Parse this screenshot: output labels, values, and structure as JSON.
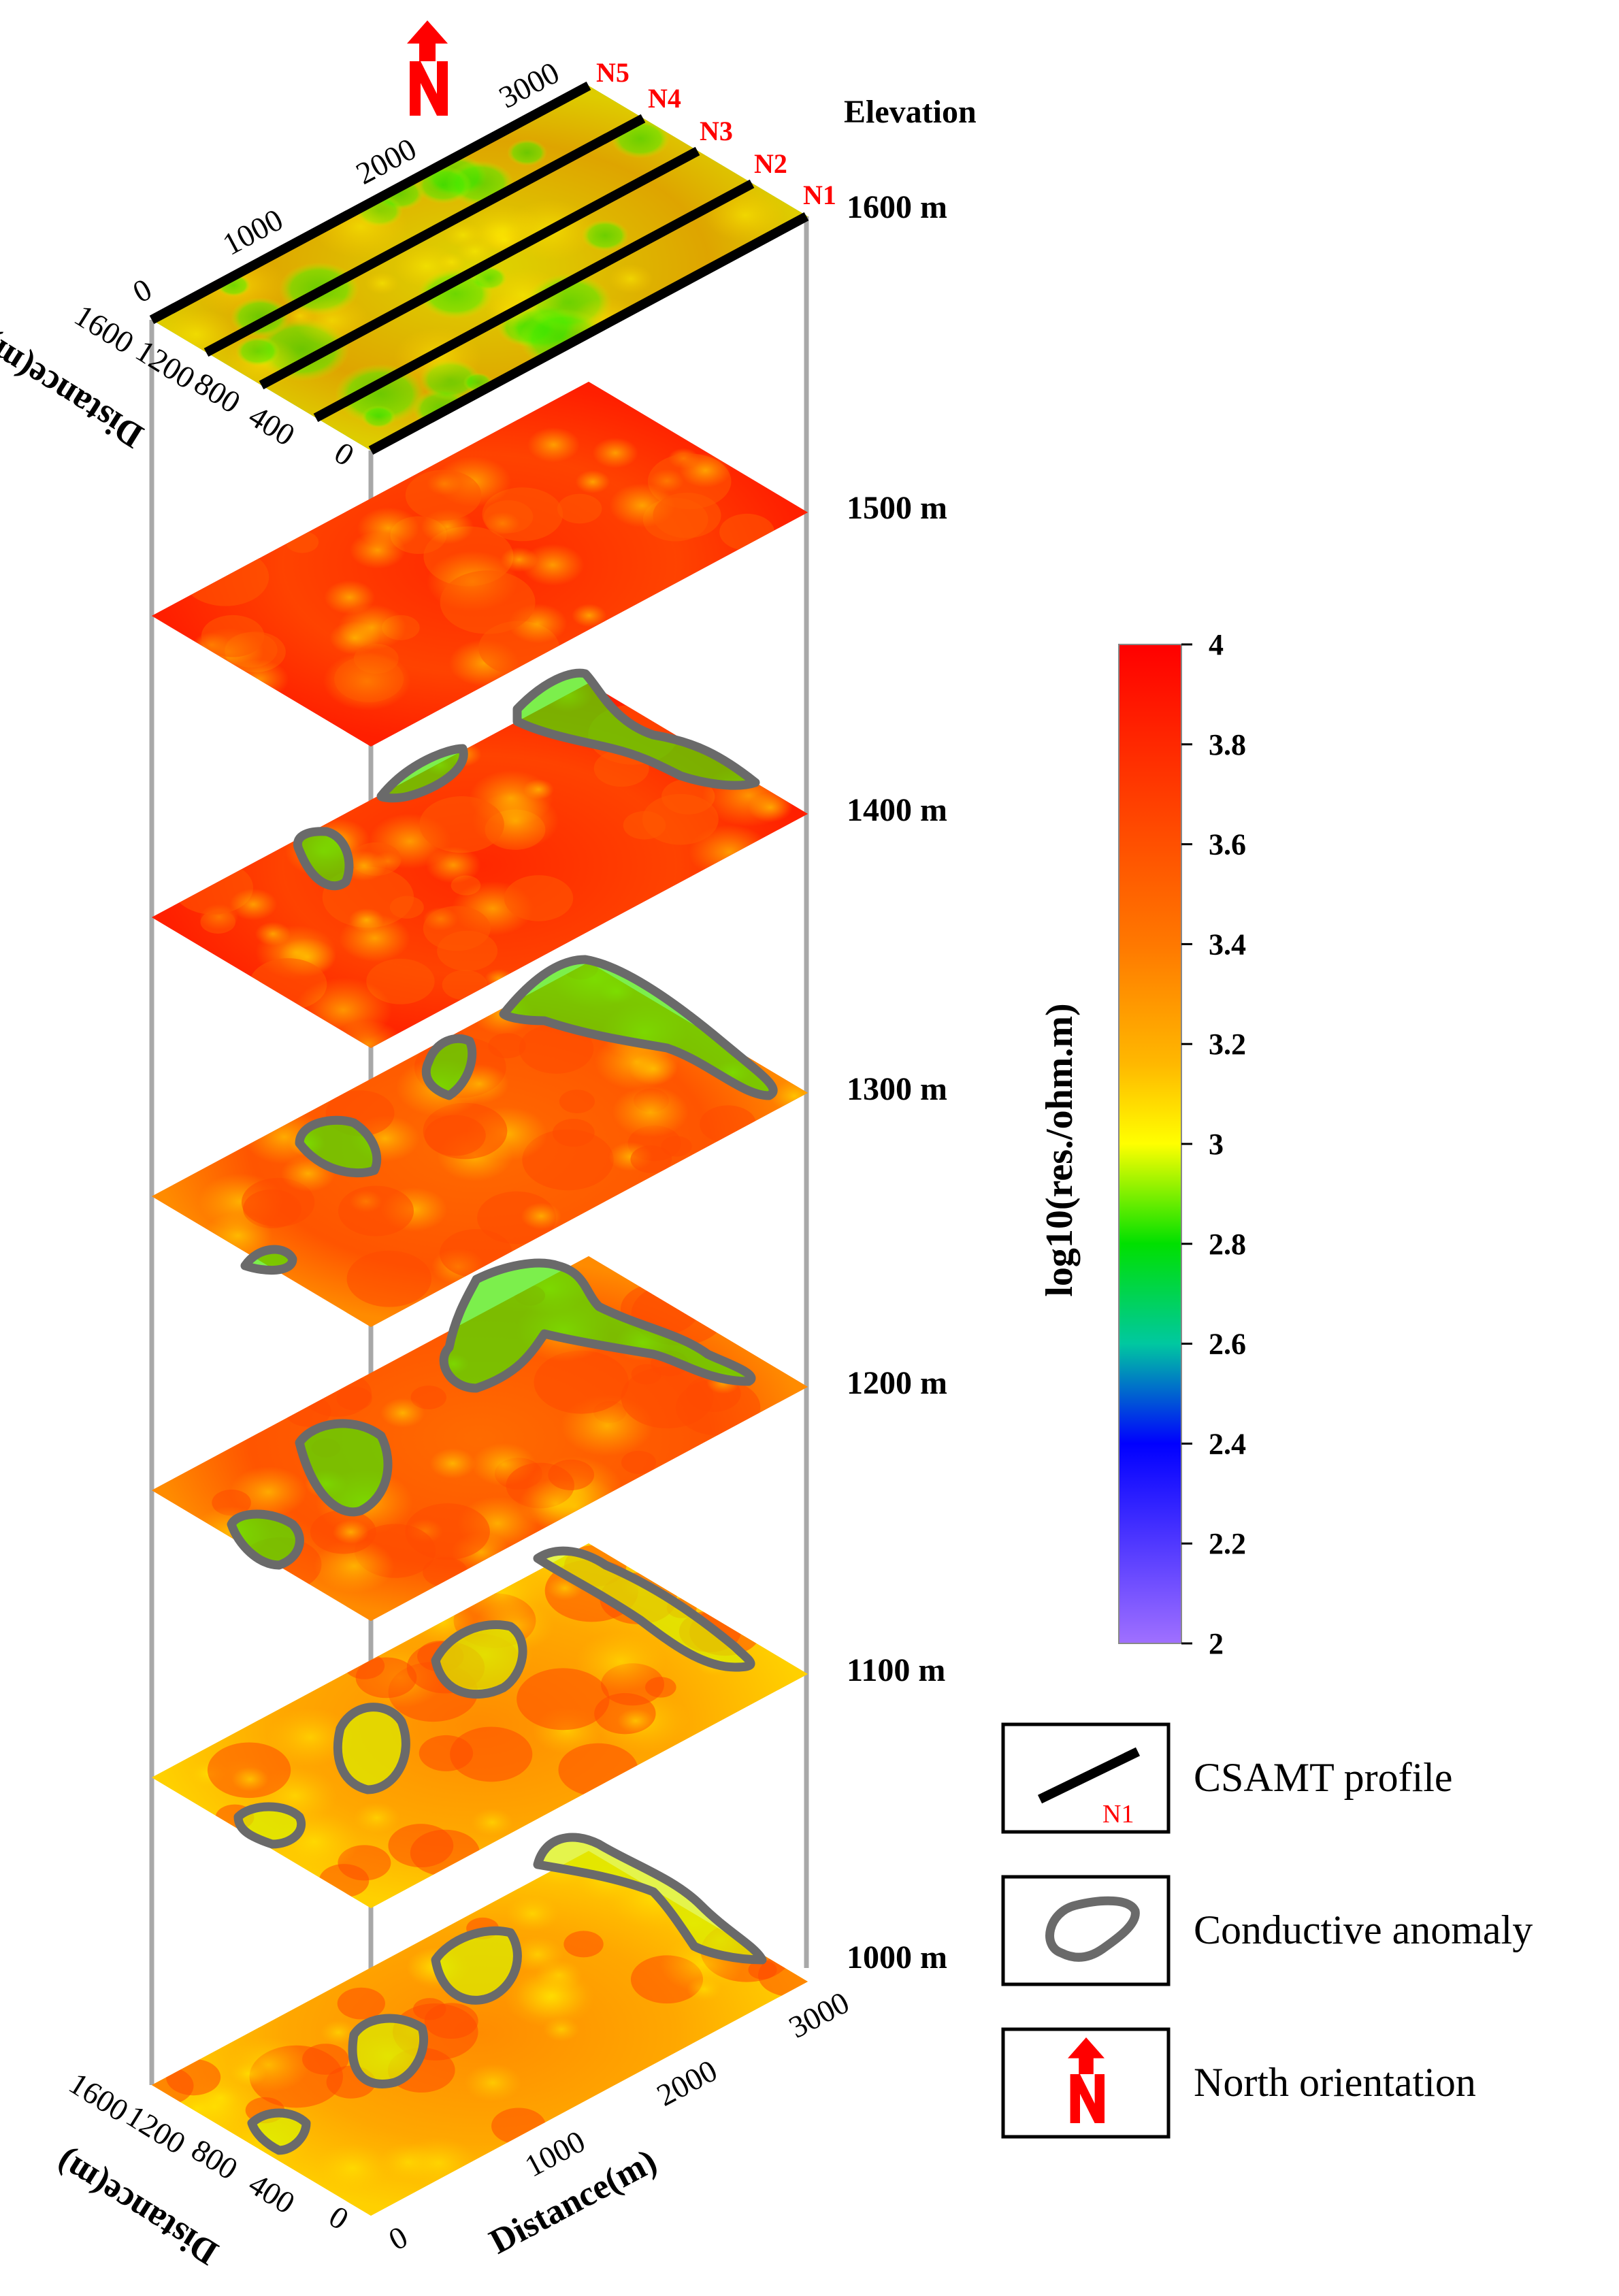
{
  "elevation_header": "Elevation",
  "slices": [
    {
      "label": "1600  m",
      "tone": "green"
    },
    {
      "label": "1500  m",
      "tone": "red"
    },
    {
      "label": "1400  m",
      "tone": "red"
    },
    {
      "label": "1300  m",
      "tone": "orange"
    },
    {
      "label": "1200  m",
      "tone": "orange"
    },
    {
      "label": "1100  m",
      "tone": "yellow"
    },
    {
      "label": "1000  m",
      "tone": "yellow"
    }
  ],
  "profiles": [
    "N5",
    "N4",
    "N3",
    "N2",
    "N1"
  ],
  "axes": {
    "distance_ticks": [
      "0",
      "1000",
      "2000",
      "3000"
    ],
    "cross_ticks": [
      "1600",
      "1200",
      "800",
      "400",
      "0"
    ],
    "distance_label": "Distance(m)",
    "cross_label": "Distance(m)"
  },
  "colorbar": {
    "title": "log10(res./ohm.m)",
    "ticks": [
      "4",
      "3.8",
      "3.6",
      "3.4",
      "3.2",
      "3",
      "2.8",
      "2.6",
      "2.4",
      "2.2",
      "2"
    ]
  },
  "legend": [
    {
      "label": "CSAMT profile",
      "icon_text": "N1"
    },
    {
      "label": "Conductive anomaly"
    },
    {
      "label": "North orientation"
    }
  ],
  "colors": {
    "red": "#ff1a00",
    "orange": "#ff7000",
    "yellow": "#ffd000",
    "green": "#22e000",
    "anomaly": "#6a6a6a",
    "profile_label": "#ff0000"
  }
}
